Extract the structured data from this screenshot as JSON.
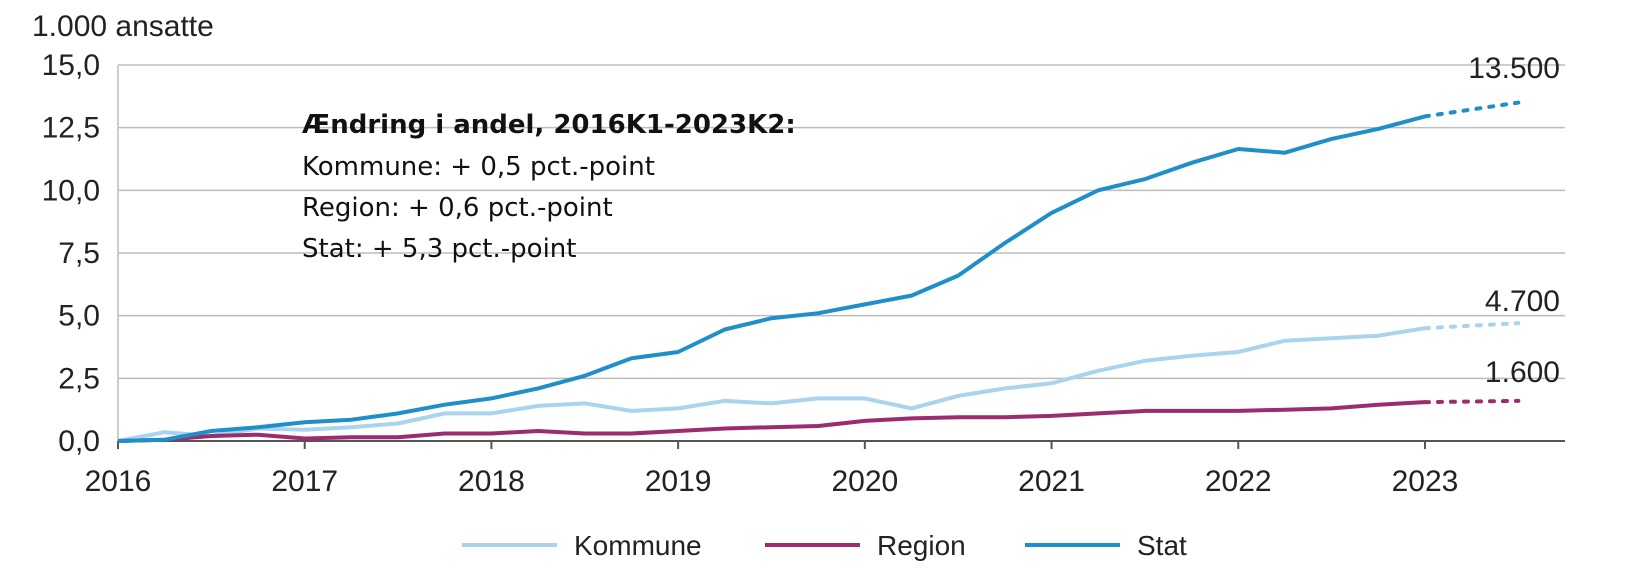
{
  "chart_data": {
    "type": "line",
    "ylabel": "1.000 ansatte",
    "ylim": [
      0,
      15
    ],
    "yticks": [
      "0,0",
      "2,5",
      "5,0",
      "7,5",
      "10,0",
      "12,5",
      "15,0"
    ],
    "xlim": [
      2016,
      2023.75
    ],
    "xticks": [
      "2016",
      "2017",
      "2018",
      "2019",
      "2020",
      "2021",
      "2022",
      "2023"
    ],
    "grid": true,
    "legend_position": "bottom",
    "annotation": {
      "title": "Ændring i andel, 2016K1-2023K2:",
      "lines": [
        "Kommune: + 0,5 pct.-point",
        "Region: + 0,6 pct.-point",
        "Stat: + 5,3 pct.-point"
      ]
    },
    "series": [
      {
        "name": "Kommune",
        "color": "#a9d3ee",
        "x": [
          2016,
          2016.25,
          2016.5,
          2016.75,
          2017,
          2017.25,
          2017.5,
          2017.75,
          2018,
          2018.25,
          2018.5,
          2018.75,
          2019,
          2019.25,
          2019.5,
          2019.75,
          2020,
          2020.25,
          2020.5,
          2020.75,
          2021,
          2021.25,
          2021.5,
          2021.75,
          2022,
          2022.25,
          2022.5,
          2022.75,
          2023
        ],
        "y": [
          0.0,
          0.35,
          0.2,
          0.5,
          0.45,
          0.55,
          0.7,
          1.1,
          1.1,
          1.4,
          1.5,
          1.2,
          1.3,
          1.6,
          1.5,
          1.7,
          1.7,
          1.3,
          1.8,
          2.1,
          2.3,
          2.8,
          3.2,
          3.4,
          3.55,
          4.0,
          4.1,
          4.2,
          4.5
        ],
        "projected_end": 4.7,
        "end_label": "4.700"
      },
      {
        "name": "Region",
        "color": "#9b2d6e",
        "x": [
          2016,
          2016.25,
          2016.5,
          2016.75,
          2017,
          2017.25,
          2017.5,
          2017.75,
          2018,
          2018.25,
          2018.5,
          2018.75,
          2019,
          2019.25,
          2019.5,
          2019.75,
          2020,
          2020.25,
          2020.5,
          2020.75,
          2021,
          2021.25,
          2021.5,
          2021.75,
          2022,
          2022.25,
          2022.5,
          2022.75,
          2023
        ],
        "y": [
          0.0,
          0.05,
          0.2,
          0.25,
          0.1,
          0.15,
          0.15,
          0.3,
          0.3,
          0.4,
          0.3,
          0.3,
          0.4,
          0.5,
          0.55,
          0.6,
          0.8,
          0.9,
          0.95,
          0.95,
          1.0,
          1.1,
          1.2,
          1.2,
          1.2,
          1.25,
          1.3,
          1.45,
          1.55
        ],
        "projected_end": 1.6,
        "end_label": "1.600"
      },
      {
        "name": "Stat",
        "color": "#1f8fca",
        "x": [
          2016,
          2016.25,
          2016.5,
          2016.75,
          2017,
          2017.25,
          2017.5,
          2017.75,
          2018,
          2018.25,
          2018.5,
          2018.75,
          2019,
          2019.25,
          2019.5,
          2019.75,
          2020,
          2020.25,
          2020.5,
          2020.75,
          2021,
          2021.25,
          2021.5,
          2021.75,
          2022,
          2022.25,
          2022.5,
          2022.75,
          2023
        ],
        "y": [
          0.0,
          0.05,
          0.4,
          0.55,
          0.75,
          0.85,
          1.1,
          1.45,
          1.7,
          2.1,
          2.6,
          3.3,
          3.55,
          4.45,
          4.9,
          5.1,
          5.45,
          5.8,
          6.6,
          7.9,
          9.1,
          10.0,
          10.45,
          11.1,
          11.65,
          11.5,
          12.05,
          12.45,
          12.95
        ],
        "projected_end": 13.5,
        "end_label": "13.500"
      }
    ]
  }
}
